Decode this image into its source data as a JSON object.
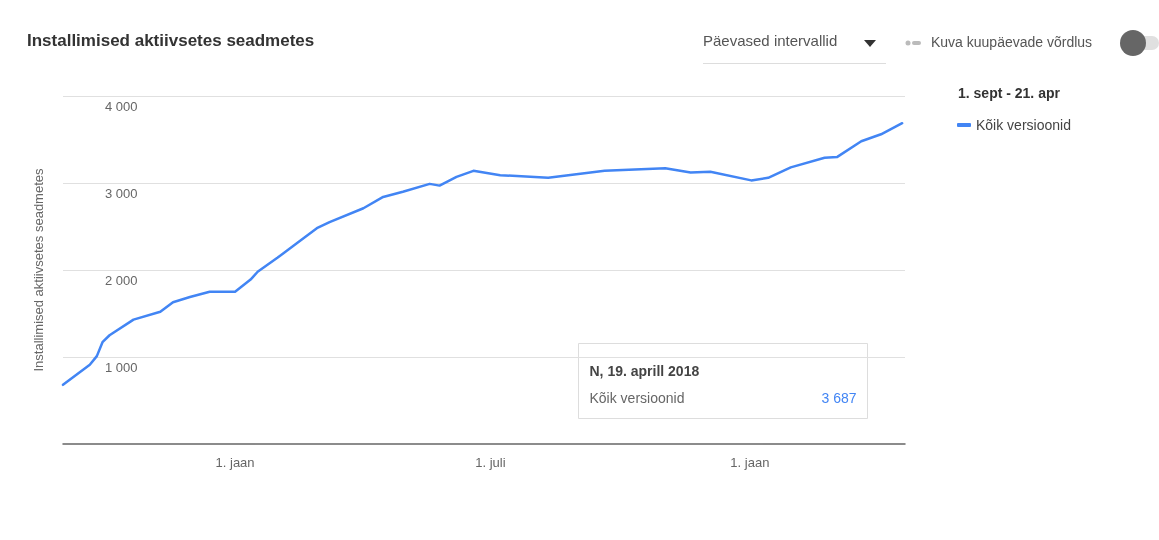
{
  "chart_data": {
    "type": "line",
    "title": "Installimised aktiivsetes seadmetes",
    "ylabel": "Installimised aktiivsetes seadmetes",
    "legend_title": "1. sept - 21. apr",
    "x": [
      "2016-09-01",
      "2016-09-20",
      "2016-09-25",
      "2016-09-29",
      "2016-10-04",
      "2016-10-21",
      "2016-11-09",
      "2016-11-18",
      "2016-11-30",
      "2016-12-14",
      "2017-01-01",
      "2017-01-12",
      "2017-01-17",
      "2017-01-31",
      "2017-02-14",
      "2017-02-28",
      "2017-03-09",
      "2017-04-02",
      "2017-04-16",
      "2017-04-30",
      "2017-05-19",
      "2017-05-26",
      "2017-06-07",
      "2017-06-19",
      "2017-07-08",
      "2017-08-11",
      "2017-09-20",
      "2017-11-02",
      "2017-11-20",
      "2017-12-04",
      "2018-01-02",
      "2018-01-14",
      "2018-01-30",
      "2018-02-23",
      "2018-03-04",
      "2018-03-21",
      "2018-04-04",
      "2018-04-19"
    ],
    "series": [
      {
        "name": "Kõik versioonid",
        "color": "#4285f4",
        "values": [
          680,
          910,
          1010,
          1170,
          1250,
          1430,
          1520,
          1630,
          1690,
          1750,
          1750,
          1890,
          1980,
          2140,
          2310,
          2480,
          2550,
          2710,
          2840,
          2900,
          2990,
          2970,
          3070,
          3140,
          3090,
          3060,
          3140,
          3170,
          3120,
          3130,
          3030,
          3060,
          3180,
          3290,
          3300,
          3480,
          3560,
          3687
        ]
      }
    ],
    "xlim": [
      "2016-09-01",
      "2018-04-21"
    ],
    "xticks": [
      {
        "value": "2017-01-01",
        "label": "1. jaan"
      },
      {
        "value": "2017-07-01",
        "label": "1. juli"
      },
      {
        "value": "2018-01-01",
        "label": "1. jaan"
      }
    ],
    "ylim": [
      0,
      4000
    ],
    "yticks": [
      {
        "value": 1000,
        "label": "1 000"
      },
      {
        "value": 2000,
        "label": "2 000"
      },
      {
        "value": 3000,
        "label": "3 000"
      },
      {
        "value": 4000,
        "label": "4 000"
      }
    ],
    "grid": "y",
    "legend": "top right",
    "marker": "none",
    "line_style": "solid",
    "annotations": [
      "Päevased intervallid",
      "Kuva kuupäevade võrdlus",
      "N, 19. aprill 2018",
      "3 687"
    ]
  }
}
